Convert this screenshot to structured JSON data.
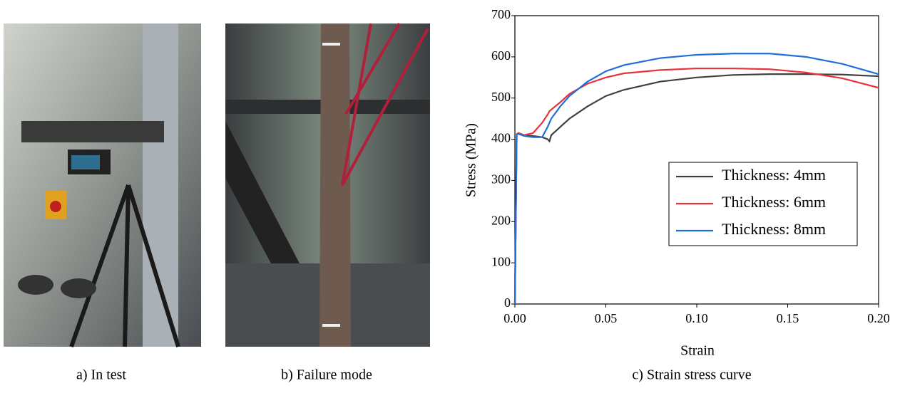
{
  "captions": [
    "a) In test",
    "b) Failure mode",
    "c) Strain stress curve"
  ],
  "chart_data": {
    "type": "line",
    "xlabel": "Strain",
    "ylabel": "Stress (MPa)",
    "x": [
      0,
      0.001,
      0.002,
      0.005,
      0.01,
      0.015,
      0.018,
      0.019,
      0.02,
      0.025,
      0.03,
      0.04,
      0.05,
      0.06,
      0.08,
      0.1,
      0.12,
      0.14,
      0.16,
      0.18,
      0.2
    ],
    "series": [
      {
        "name": "Thickness: 4mm",
        "color": "#404040",
        "values": [
          0,
          412,
          415,
          410,
          408,
          405,
          400,
          395,
          410,
          430,
          450,
          480,
          505,
          520,
          540,
          550,
          556,
          558,
          558,
          557,
          553
        ]
      },
      {
        "name": "Thickness: 6mm",
        "color": "#e8323c",
        "values": [
          0,
          412,
          415,
          410,
          415,
          440,
          460,
          468,
          472,
          490,
          510,
          535,
          550,
          560,
          568,
          572,
          572,
          570,
          562,
          548,
          525
        ]
      },
      {
        "name": "Thickness: 8mm",
        "color": "#1f6fd6",
        "values": [
          0,
          412,
          413,
          408,
          405,
          405,
          430,
          440,
          450,
          480,
          505,
          540,
          565,
          580,
          597,
          605,
          608,
          608,
          600,
          583,
          558
        ]
      }
    ],
    "xlim": [
      0,
      0.2
    ],
    "xticks": [
      {
        "value": 0,
        "label": "0.00"
      },
      {
        "value": 0.05,
        "label": "0.05"
      },
      {
        "value": 0.1,
        "label": "0.10"
      },
      {
        "value": 0.15,
        "label": "0.15"
      },
      {
        "value": 0.2,
        "label": "0.20"
      }
    ],
    "ylim": [
      0,
      700
    ],
    "yticks": [
      0,
      100,
      200,
      300,
      400,
      500,
      600,
      700
    ],
    "grid": false,
    "legend": "right"
  }
}
